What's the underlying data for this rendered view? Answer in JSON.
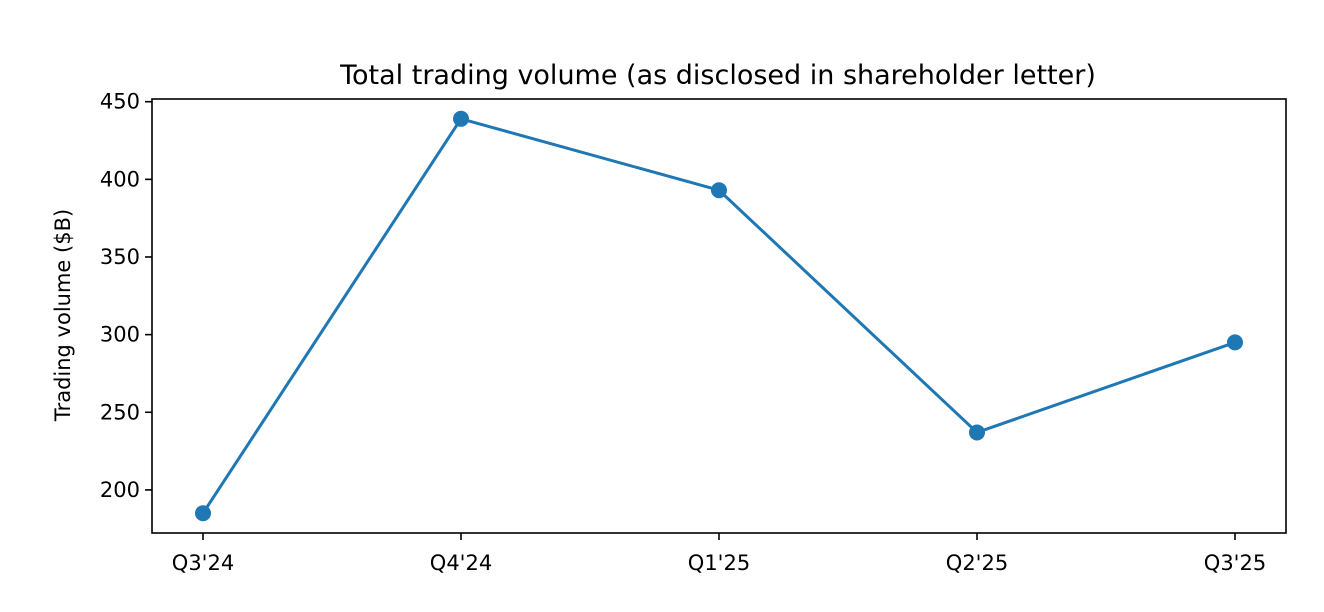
{
  "chart_data": {
    "type": "line",
    "title": "Total trading volume (as disclosed in shareholder letter)",
    "xlabel": "",
    "ylabel": "Trading volume ($B)",
    "categories": [
      "Q3'24",
      "Q4'24",
      "Q1'25",
      "Q2'25",
      "Q3'25"
    ],
    "series": [
      {
        "values": [
          185,
          439,
          393,
          237,
          295
        ],
        "color": "#1f77b4"
      }
    ],
    "ylim": [
      172.25,
      451.75
    ],
    "yticks": [
      200,
      250,
      300,
      350,
      400,
      450
    ],
    "grid": false,
    "legend": "none"
  }
}
